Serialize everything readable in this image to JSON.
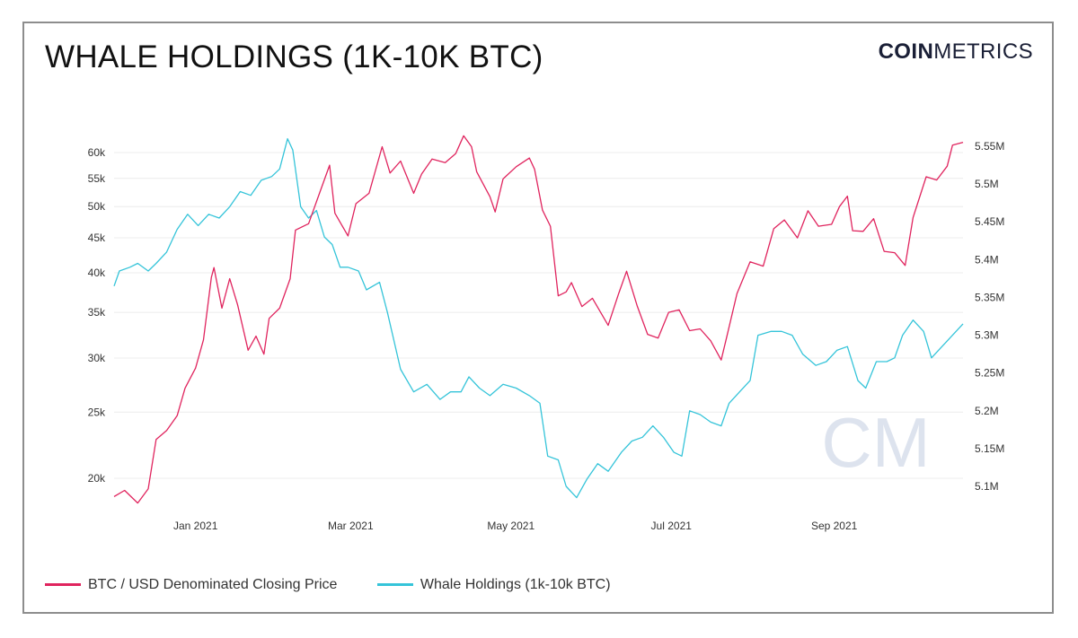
{
  "header": {
    "title": "WHALE HOLDINGS (1K-10K BTC)",
    "logo_bold": "COIN",
    "logo_light": "METRICS",
    "watermark": "CM"
  },
  "colors": {
    "price": "#e0245e",
    "whale": "#35c4d9"
  },
  "chart_data": {
    "type": "line",
    "x_ticks": [
      "Jan 2021",
      "Mar 2021",
      "May 2021",
      "Jul 2021",
      "Sep 2021"
    ],
    "y_left": {
      "ticks": [
        "20k",
        "25k",
        "30k",
        "35k",
        "40k",
        "45k",
        "50k",
        "55k",
        "60k"
      ],
      "scale": "log",
      "range": [
        18500,
        63000
      ]
    },
    "y_right": {
      "ticks": [
        "5.1M",
        "5.15M",
        "5.2M",
        "5.25M",
        "5.3M",
        "5.35M",
        "5.4M",
        "5.45M",
        "5.5M",
        "5.55M"
      ],
      "range": [
        5.09,
        5.57
      ]
    },
    "series": [
      {
        "name": "BTC / USD Denominated Closing Price",
        "axis": "left",
        "points": [
          [
            "2020-12-01",
            18800
          ],
          [
            "2020-12-05",
            19200
          ],
          [
            "2020-12-10",
            18400
          ],
          [
            "2020-12-14",
            19300
          ],
          [
            "2020-12-17",
            22800
          ],
          [
            "2020-12-21",
            23500
          ],
          [
            "2020-12-25",
            24700
          ],
          [
            "2020-12-28",
            27100
          ],
          [
            "2021-01-01",
            29000
          ],
          [
            "2021-01-04",
            31900
          ],
          [
            "2021-01-07",
            39400
          ],
          [
            "2021-01-08",
            40700
          ],
          [
            "2021-01-11",
            35500
          ],
          [
            "2021-01-14",
            39200
          ],
          [
            "2021-01-17",
            35900
          ],
          [
            "2021-01-21",
            30800
          ],
          [
            "2021-01-24",
            32300
          ],
          [
            "2021-01-27",
            30400
          ],
          [
            "2021-01-29",
            34300
          ],
          [
            "2021-02-02",
            35500
          ],
          [
            "2021-02-06",
            39200
          ],
          [
            "2021-02-08",
            46200
          ],
          [
            "2021-02-13",
            47200
          ],
          [
            "2021-02-17",
            52100
          ],
          [
            "2021-02-21",
            57500
          ],
          [
            "2021-02-23",
            48900
          ],
          [
            "2021-02-28",
            45300
          ],
          [
            "2021-03-03",
            50500
          ],
          [
            "2021-03-08",
            52300
          ],
          [
            "2021-03-13",
            61200
          ],
          [
            "2021-03-16",
            56000
          ],
          [
            "2021-03-20",
            58300
          ],
          [
            "2021-03-25",
            52300
          ],
          [
            "2021-03-28",
            55800
          ],
          [
            "2021-04-01",
            58700
          ],
          [
            "2021-04-06",
            58000
          ],
          [
            "2021-04-10",
            59800
          ],
          [
            "2021-04-13",
            63500
          ],
          [
            "2021-04-16",
            61200
          ],
          [
            "2021-04-18",
            56200
          ],
          [
            "2021-04-23",
            51700
          ],
          [
            "2021-04-25",
            49100
          ],
          [
            "2021-04-28",
            54900
          ],
          [
            "2021-05-03",
            57200
          ],
          [
            "2021-05-08",
            58900
          ],
          [
            "2021-05-10",
            56700
          ],
          [
            "2021-05-13",
            49400
          ],
          [
            "2021-05-16",
            46800
          ],
          [
            "2021-05-19",
            37000
          ],
          [
            "2021-05-22",
            37500
          ],
          [
            "2021-05-24",
            38700
          ],
          [
            "2021-05-28",
            35700
          ],
          [
            "2021-06-01",
            36700
          ],
          [
            "2021-06-07",
            33500
          ],
          [
            "2021-06-11",
            37300
          ],
          [
            "2021-06-14",
            40200
          ],
          [
            "2021-06-18",
            35800
          ],
          [
            "2021-06-22",
            32500
          ],
          [
            "2021-06-26",
            32100
          ],
          [
            "2021-06-30",
            35000
          ],
          [
            "2021-07-04",
            35300
          ],
          [
            "2021-07-08",
            32900
          ],
          [
            "2021-07-12",
            33100
          ],
          [
            "2021-07-16",
            31800
          ],
          [
            "2021-07-20",
            29800
          ],
          [
            "2021-07-22",
            32100
          ],
          [
            "2021-07-26",
            37300
          ],
          [
            "2021-07-31",
            41500
          ],
          [
            "2021-08-05",
            40900
          ],
          [
            "2021-08-09",
            46400
          ],
          [
            "2021-08-13",
            47800
          ],
          [
            "2021-08-18",
            45000
          ],
          [
            "2021-08-22",
            49300
          ],
          [
            "2021-08-26",
            46800
          ],
          [
            "2021-08-31",
            47100
          ],
          [
            "2021-09-03",
            50000
          ],
          [
            "2021-09-06",
            51800
          ],
          [
            "2021-09-08",
            46100
          ],
          [
            "2021-09-12",
            46000
          ],
          [
            "2021-09-16",
            48000
          ],
          [
            "2021-09-20",
            43000
          ],
          [
            "2021-09-24",
            42800
          ],
          [
            "2021-09-28",
            41000
          ],
          [
            "2021-10-01",
            48200
          ],
          [
            "2021-10-06",
            55300
          ],
          [
            "2021-10-10",
            54700
          ],
          [
            "2021-10-14",
            57300
          ],
          [
            "2021-10-16",
            61500
          ],
          [
            "2021-10-20",
            62100
          ]
        ]
      },
      {
        "name": "Whale Holdings (1k-10k BTC)",
        "axis": "right",
        "points": [
          [
            "2020-12-01",
            5.365
          ],
          [
            "2020-12-03",
            5.385
          ],
          [
            "2020-12-07",
            5.39
          ],
          [
            "2020-12-10",
            5.395
          ],
          [
            "2020-12-14",
            5.385
          ],
          [
            "2020-12-17",
            5.395
          ],
          [
            "2020-12-21",
            5.41
          ],
          [
            "2020-12-25",
            5.44
          ],
          [
            "2020-12-29",
            5.46
          ],
          [
            "2021-01-02",
            5.445
          ],
          [
            "2021-01-06",
            5.46
          ],
          [
            "2021-01-10",
            5.455
          ],
          [
            "2021-01-14",
            5.47
          ],
          [
            "2021-01-18",
            5.49
          ],
          [
            "2021-01-22",
            5.485
          ],
          [
            "2021-01-26",
            5.505
          ],
          [
            "2021-01-30",
            5.51
          ],
          [
            "2021-02-02",
            5.52
          ],
          [
            "2021-02-05",
            5.56
          ],
          [
            "2021-02-07",
            5.545
          ],
          [
            "2021-02-10",
            5.47
          ],
          [
            "2021-02-13",
            5.455
          ],
          [
            "2021-02-16",
            5.465
          ],
          [
            "2021-02-19",
            5.43
          ],
          [
            "2021-02-22",
            5.42
          ],
          [
            "2021-02-25",
            5.39
          ],
          [
            "2021-02-28",
            5.39
          ],
          [
            "2021-03-04",
            5.385
          ],
          [
            "2021-03-07",
            5.36
          ],
          [
            "2021-03-12",
            5.37
          ],
          [
            "2021-03-15",
            5.33
          ],
          [
            "2021-03-20",
            5.255
          ],
          [
            "2021-03-25",
            5.225
          ],
          [
            "2021-03-30",
            5.235
          ],
          [
            "2021-04-04",
            5.215
          ],
          [
            "2021-04-08",
            5.225
          ],
          [
            "2021-04-12",
            5.225
          ],
          [
            "2021-04-15",
            5.245
          ],
          [
            "2021-04-19",
            5.23
          ],
          [
            "2021-04-23",
            5.22
          ],
          [
            "2021-04-28",
            5.235
          ],
          [
            "2021-05-03",
            5.23
          ],
          [
            "2021-05-08",
            5.22
          ],
          [
            "2021-05-12",
            5.21
          ],
          [
            "2021-05-15",
            5.14
          ],
          [
            "2021-05-19",
            5.135
          ],
          [
            "2021-05-22",
            5.1
          ],
          [
            "2021-05-26",
            5.085
          ],
          [
            "2021-05-30",
            5.11
          ],
          [
            "2021-06-03",
            5.13
          ],
          [
            "2021-06-07",
            5.12
          ],
          [
            "2021-06-12",
            5.145
          ],
          [
            "2021-06-16",
            5.16
          ],
          [
            "2021-06-20",
            5.165
          ],
          [
            "2021-06-24",
            5.18
          ],
          [
            "2021-06-28",
            5.165
          ],
          [
            "2021-07-02",
            5.145
          ],
          [
            "2021-07-05",
            5.14
          ],
          [
            "2021-07-08",
            5.2
          ],
          [
            "2021-07-12",
            5.195
          ],
          [
            "2021-07-16",
            5.185
          ],
          [
            "2021-07-20",
            5.18
          ],
          [
            "2021-07-23",
            5.21
          ],
          [
            "2021-07-27",
            5.225
          ],
          [
            "2021-07-31",
            5.24
          ],
          [
            "2021-08-03",
            5.3
          ],
          [
            "2021-08-08",
            5.305
          ],
          [
            "2021-08-12",
            5.305
          ],
          [
            "2021-08-16",
            5.3
          ],
          [
            "2021-08-20",
            5.275
          ],
          [
            "2021-08-25",
            5.26
          ],
          [
            "2021-08-29",
            5.265
          ],
          [
            "2021-09-02",
            5.28
          ],
          [
            "2021-09-06",
            5.285
          ],
          [
            "2021-09-10",
            5.24
          ],
          [
            "2021-09-13",
            5.23
          ],
          [
            "2021-09-17",
            5.265
          ],
          [
            "2021-09-21",
            5.265
          ],
          [
            "2021-09-24",
            5.27
          ],
          [
            "2021-09-27",
            5.3
          ],
          [
            "2021-10-01",
            5.32
          ],
          [
            "2021-10-05",
            5.305
          ],
          [
            "2021-10-08",
            5.27
          ],
          [
            "2021-10-12",
            5.285
          ],
          [
            "2021-10-16",
            5.3
          ],
          [
            "2021-10-20",
            5.315
          ]
        ]
      }
    ]
  }
}
